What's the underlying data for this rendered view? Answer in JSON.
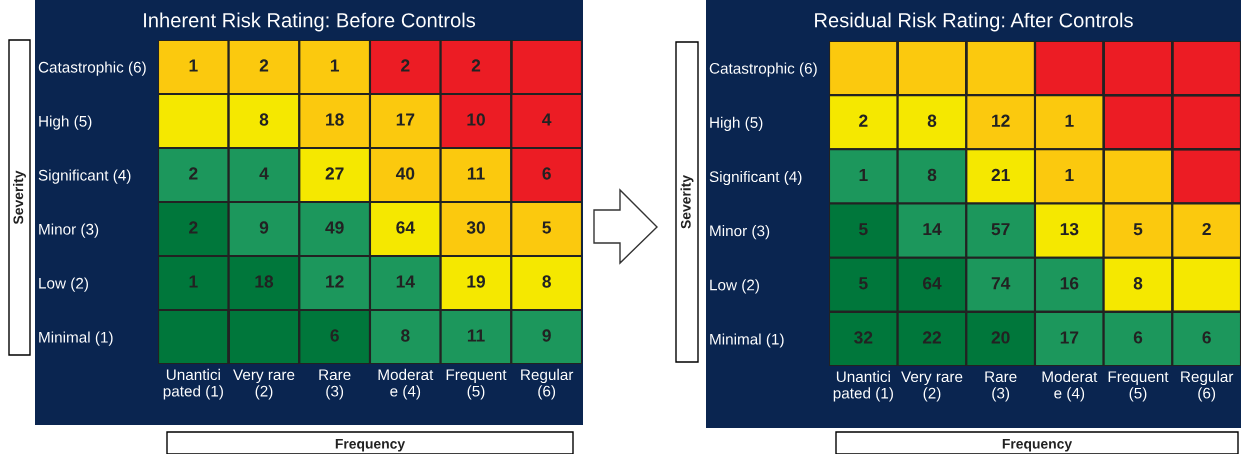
{
  "chart_data": [
    {
      "type": "heatmap",
      "title": "Inherent Risk Rating: Before Controls",
      "xlabel": "Frequency",
      "ylabel": "Severity",
      "data_labels": true,
      "categories": [
        "Unantici\npated (1)",
        "Very rare\n(2)",
        "Rare\n(3)",
        "Moderat\ne (4)",
        "Frequent\n(5)",
        "Regular\n(6)"
      ],
      "y_categories": [
        "Catastrophic (6)",
        "High (5)",
        "Significant (4)",
        "Minor (3)",
        "Low (2)",
        "Minimal (1)"
      ],
      "cells": [
        [
          1,
          2,
          1,
          2,
          2,
          null
        ],
        [
          null,
          8,
          18,
          17,
          10,
          4
        ],
        [
          2,
          4,
          27,
          40,
          11,
          6
        ],
        [
          2,
          9,
          49,
          64,
          30,
          5
        ],
        [
          1,
          18,
          12,
          14,
          19,
          8
        ],
        [
          null,
          null,
          6,
          8,
          11,
          9
        ]
      ],
      "colors": [
        [
          "#fbc90e",
          "#fbc90e",
          "#fbc90e",
          "#ec1c24",
          "#ec1c24",
          "#ec1c24"
        ],
        [
          "#f5e800",
          "#f5e800",
          "#fbc90e",
          "#fbc90e",
          "#ec1c24",
          "#ec1c24"
        ],
        [
          "#1c975c",
          "#1c975c",
          "#f5e800",
          "#fbc90e",
          "#fbc90e",
          "#ec1c24"
        ],
        [
          "#00773b",
          "#1c975c",
          "#1c975c",
          "#f5e800",
          "#fbc90e",
          "#fbc90e"
        ],
        [
          "#00773b",
          "#00773b",
          "#1c975c",
          "#1c975c",
          "#f5e800",
          "#f5e800"
        ],
        [
          "#00773b",
          "#00773b",
          "#00773b",
          "#1c975c",
          "#1c975c",
          "#1c975c"
        ]
      ]
    },
    {
      "type": "heatmap",
      "title": "Residual Risk Rating: After Controls",
      "xlabel": "Frequency",
      "ylabel": "Severity",
      "data_labels": true,
      "categories": [
        "Unantici\npated (1)",
        "Very rare\n(2)",
        "Rare\n(3)",
        "Moderat\ne (4)",
        "Frequent\n(5)",
        "Regular\n(6)"
      ],
      "y_categories": [
        "Catastrophic (6)",
        "High (5)",
        "Significant (4)",
        "Minor (3)",
        "Low (2)",
        "Minimal (1)"
      ],
      "cells": [
        [
          null,
          null,
          null,
          null,
          null,
          null
        ],
        [
          2,
          8,
          12,
          1,
          null,
          null
        ],
        [
          1,
          8,
          21,
          1,
          null,
          null
        ],
        [
          5,
          14,
          57,
          13,
          5,
          2
        ],
        [
          5,
          64,
          74,
          16,
          8,
          null
        ],
        [
          32,
          22,
          20,
          17,
          6,
          6
        ]
      ],
      "colors": [
        [
          "#fbc90e",
          "#fbc90e",
          "#fbc90e",
          "#ec1c24",
          "#ec1c24",
          "#ec1c24"
        ],
        [
          "#f5e800",
          "#f5e800",
          "#fbc90e",
          "#fbc90e",
          "#ec1c24",
          "#ec1c24"
        ],
        [
          "#1c975c",
          "#1c975c",
          "#f5e800",
          "#fbc90e",
          "#fbc90e",
          "#ec1c24"
        ],
        [
          "#00773b",
          "#1c975c",
          "#1c975c",
          "#f5e800",
          "#fbc90e",
          "#fbc90e"
        ],
        [
          "#00773b",
          "#00773b",
          "#1c975c",
          "#1c975c",
          "#f5e800",
          "#f5e800"
        ],
        [
          "#00773b",
          "#00773b",
          "#00773b",
          "#1c975c",
          "#1c975c",
          "#1c975c"
        ]
      ]
    }
  ]
}
